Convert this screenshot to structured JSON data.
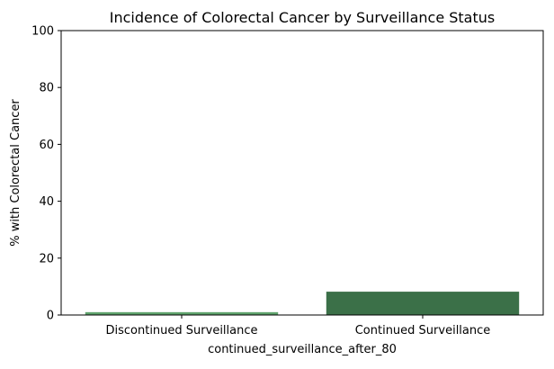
{
  "chart_data": {
    "type": "bar",
    "title": "Incidence of Colorectal Cancer by Surveillance Status",
    "xlabel": "continued_surveillance_after_80",
    "ylabel": "% with Colorectal Cancer",
    "categories": [
      "Discontinued Surveillance",
      "Continued Surveillance"
    ],
    "values": [
      1.0,
      8.2
    ],
    "ylim": [
      0,
      100
    ],
    "yticks": [
      0,
      20,
      40,
      60,
      80,
      100
    ],
    "ytick_labels": [
      "0",
      "20",
      "40",
      "60",
      "80",
      "100"
    ],
    "bar_colors": [
      "#5fa36c",
      "#3b7048"
    ],
    "grid": false,
    "legend": "none"
  }
}
